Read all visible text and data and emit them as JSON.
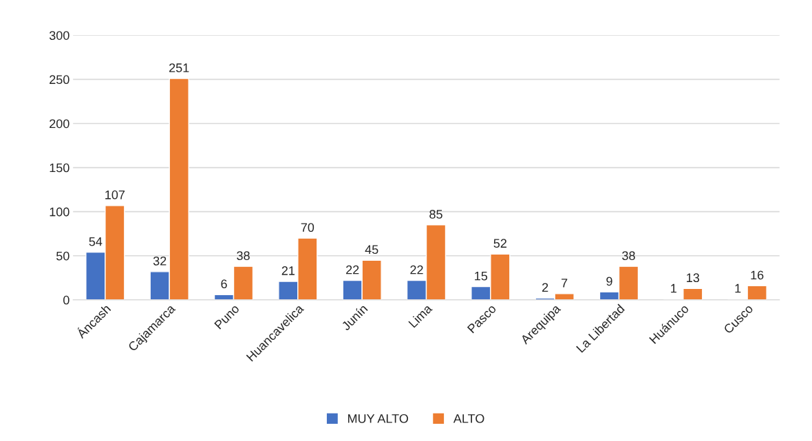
{
  "chart_data": {
    "type": "bar",
    "categories": [
      "Áncash",
      "Cajamarca",
      "Puno",
      "Huancavelica",
      "Junín",
      "Lima",
      "Pasco",
      "Arequipa",
      "La Libertad",
      "Huánuco",
      "Cusco"
    ],
    "series": [
      {
        "name": "MUY ALTO",
        "color": "#4472c4",
        "values": [
          54,
          32,
          6,
          21,
          22,
          22,
          15,
          2,
          9,
          1,
          1
        ]
      },
      {
        "name": "ALTO",
        "color": "#ed7d31",
        "values": [
          107,
          251,
          38,
          70,
          45,
          85,
          52,
          7,
          38,
          13,
          16
        ]
      }
    ],
    "ylim": [
      0,
      300
    ],
    "yticks": [
      0,
      50,
      100,
      150,
      200,
      250,
      300
    ],
    "grid": "y",
    "legend": "bottom",
    "data_labels": true
  }
}
